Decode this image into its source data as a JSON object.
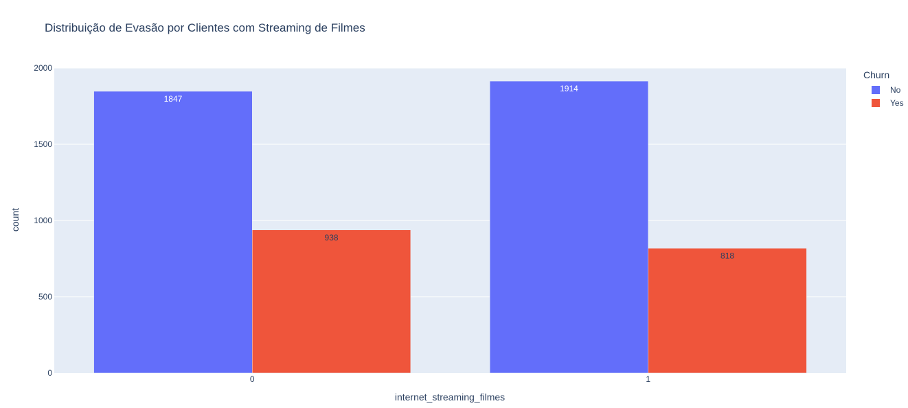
{
  "chart_data": {
    "type": "bar",
    "title": "Distribuição de Evasão por Clientes com Streaming de Filmes",
    "xlabel": "internet_streaming_filmes",
    "ylabel": "count",
    "categories": [
      "0",
      "1"
    ],
    "ylim": [
      0,
      2000
    ],
    "yticks": [
      0,
      500,
      1000,
      1500,
      2000
    ],
    "grid": true,
    "legend_title": "Churn",
    "legend_placement": "top-right",
    "series": [
      {
        "name": "No",
        "values": [
          1847,
          1914
        ],
        "color": "#636efa",
        "label_color": "#ffffff"
      },
      {
        "name": "Yes",
        "values": [
          938,
          818
        ],
        "color": "#ef553b",
        "label_color": "#2a3f5f"
      }
    ]
  }
}
